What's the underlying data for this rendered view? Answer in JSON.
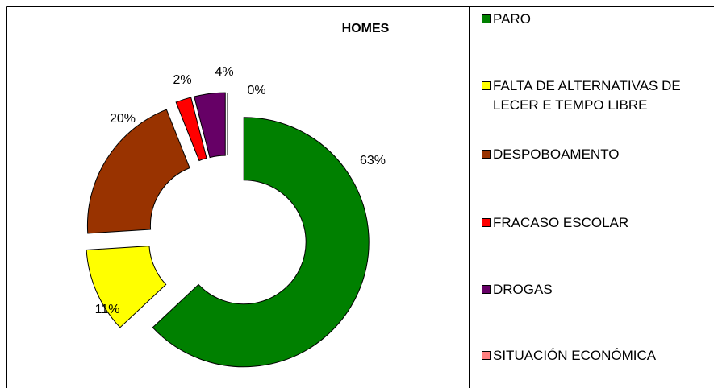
{
  "chart_data": {
    "type": "doughnut",
    "title": "HOMES",
    "categories": [
      "PARO",
      "FALTA DE ALTERNATIVAS DE LECER E TEMPO LIBRE",
      "DESPOBOAMENTO",
      "FRACASO ESCOLAR",
      "DROGAS",
      "SITUACIÓN ECONÓMICA"
    ],
    "values": [
      63,
      11,
      20,
      2,
      4,
      0
    ],
    "value_labels": [
      "63%",
      "11%",
      "20%",
      "2%",
      "4%",
      "0%"
    ],
    "colors": [
      "#008000",
      "#ffff00",
      "#993300",
      "#ff0000",
      "#660066",
      "#ff8080"
    ],
    "legend": "right"
  }
}
